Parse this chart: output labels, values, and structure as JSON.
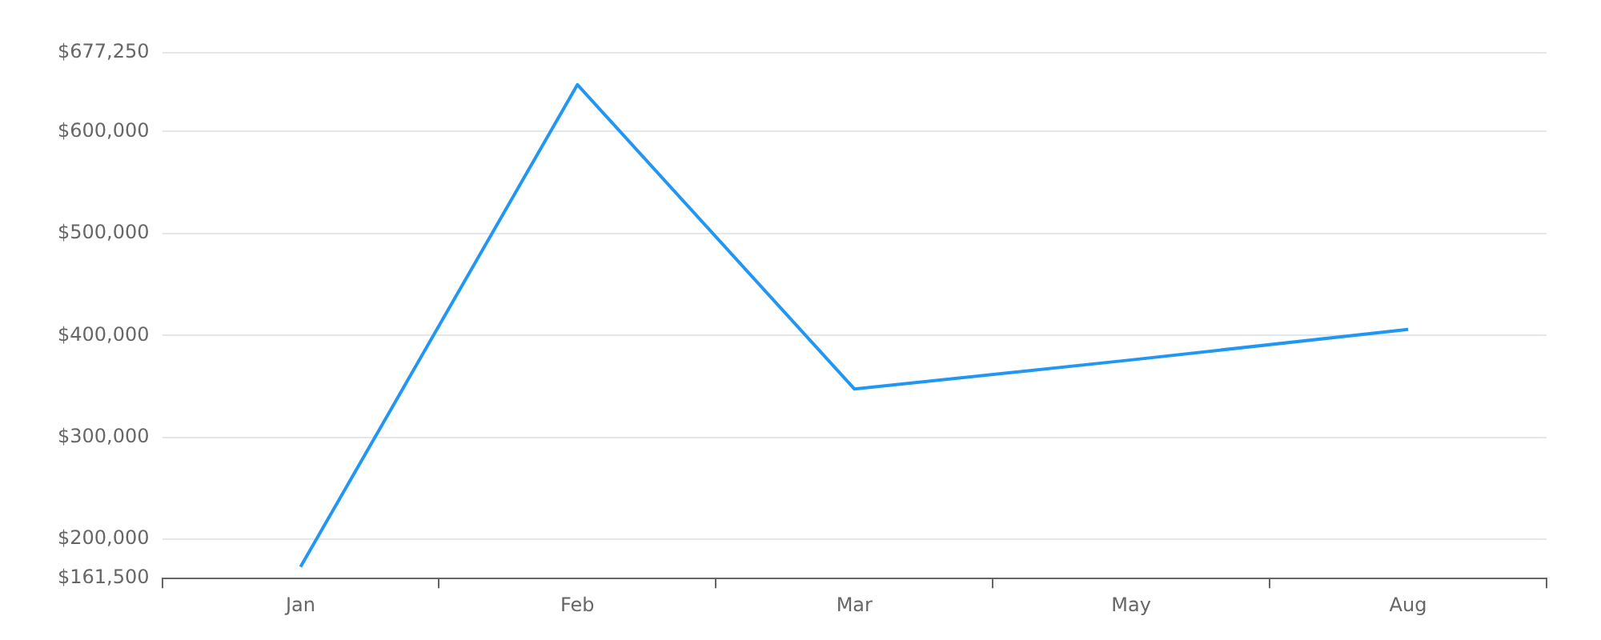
{
  "chart_data": {
    "type": "line",
    "categories": [
      "Jan",
      "Feb",
      "Mar",
      "May",
      "Aug"
    ],
    "series": [
      {
        "color": "#2196f3",
        "values": [
          173000,
          646000,
          347500,
          376000,
          406000
        ]
      }
    ],
    "ylim": [
      161500,
      677250
    ],
    "yticks": [
      {
        "value": 161500,
        "label": "$161,500"
      },
      {
        "value": 200000,
        "label": "$200,000"
      },
      {
        "value": 300000,
        "label": "$300,000"
      },
      {
        "value": 400000,
        "label": "$400,000"
      },
      {
        "value": 500000,
        "label": "$500,000"
      },
      {
        "value": 600000,
        "label": "$600,000"
      },
      {
        "value": 677250,
        "label": "$677,250"
      }
    ],
    "grid": "y",
    "legend": false,
    "marker": "none",
    "line_style": "solid"
  }
}
